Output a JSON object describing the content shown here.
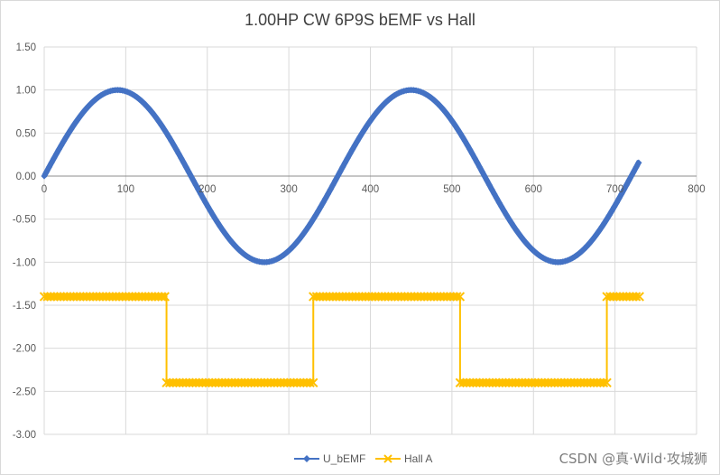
{
  "chart_data": {
    "type": "scatter",
    "title": "1.00HP CW 6P9S bEMF vs Hall",
    "xlim": [
      0,
      800
    ],
    "ylim": [
      -3.0,
      1.5
    ],
    "x_ticks": [
      "0",
      "100",
      "200",
      "300",
      "400",
      "500",
      "600",
      "700",
      "800"
    ],
    "y_ticks": [
      "1.50",
      "1.00",
      "0.50",
      "0.00",
      "-0.50",
      "-1.00",
      "-1.50",
      "-2.00",
      "-2.50",
      "-3.00"
    ],
    "grid": true,
    "legend_position": "bottom",
    "series": [
      {
        "name": "U_bEMF",
        "color": "#4472c4",
        "marker": "diamond",
        "description": "sine wave, amplitude 1.00, period 360",
        "x": [
          0,
          30,
          60,
          90,
          120,
          150,
          180,
          210,
          240,
          270,
          300,
          330,
          360,
          390,
          420,
          450,
          480,
          510,
          540,
          570,
          600,
          630,
          660,
          690,
          720,
          730
        ],
        "y": [
          0.0,
          0.5,
          0.87,
          1.0,
          0.87,
          0.5,
          0.0,
          -0.5,
          -0.87,
          -1.0,
          -0.87,
          -0.5,
          0.0,
          0.5,
          0.87,
          1.0,
          0.87,
          0.5,
          0.0,
          -0.5,
          -0.87,
          -1.0,
          -0.87,
          -0.5,
          0.0,
          0.17
        ]
      },
      {
        "name": "Hall A",
        "color": "#ffc000",
        "marker": "x",
        "x": [
          0,
          150,
          150,
          330,
          330,
          510,
          510,
          690,
          690,
          730
        ],
        "y": [
          -1.4,
          -1.4,
          -2.4,
          -2.4,
          -1.4,
          -1.4,
          -2.4,
          -2.4,
          -1.4,
          -1.4
        ]
      }
    ]
  },
  "watermark": "CSDN @真·Wild·攻城狮"
}
